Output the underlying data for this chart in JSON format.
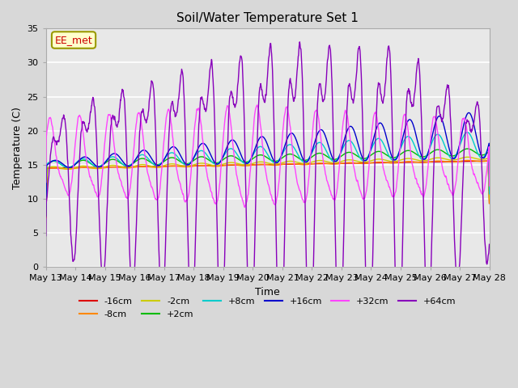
{
  "title": "Soil/Water Temperature Set 1",
  "xlabel": "Time",
  "ylabel": "Temperature (C)",
  "ylim": [
    0,
    35
  ],
  "yticks": [
    0,
    5,
    10,
    15,
    20,
    25,
    30,
    35
  ],
  "annotation_text": "EE_met",
  "annotation_color": "#cc0000",
  "annotation_bg": "#ffffcc",
  "annotation_border": "#999900",
  "series_colors": {
    "-16cm": "#dd0000",
    "-8cm": "#ff8800",
    "-2cm": "#cccc00",
    "+2cm": "#00bb00",
    "+8cm": "#00cccc",
    "+16cm": "#0000cc",
    "+32cm": "#ff44ff",
    "+64cm": "#8800bb"
  },
  "plot_bg": "#e8e8e8",
  "fig_bg": "#d8d8d8",
  "grid_color": "#ffffff"
}
